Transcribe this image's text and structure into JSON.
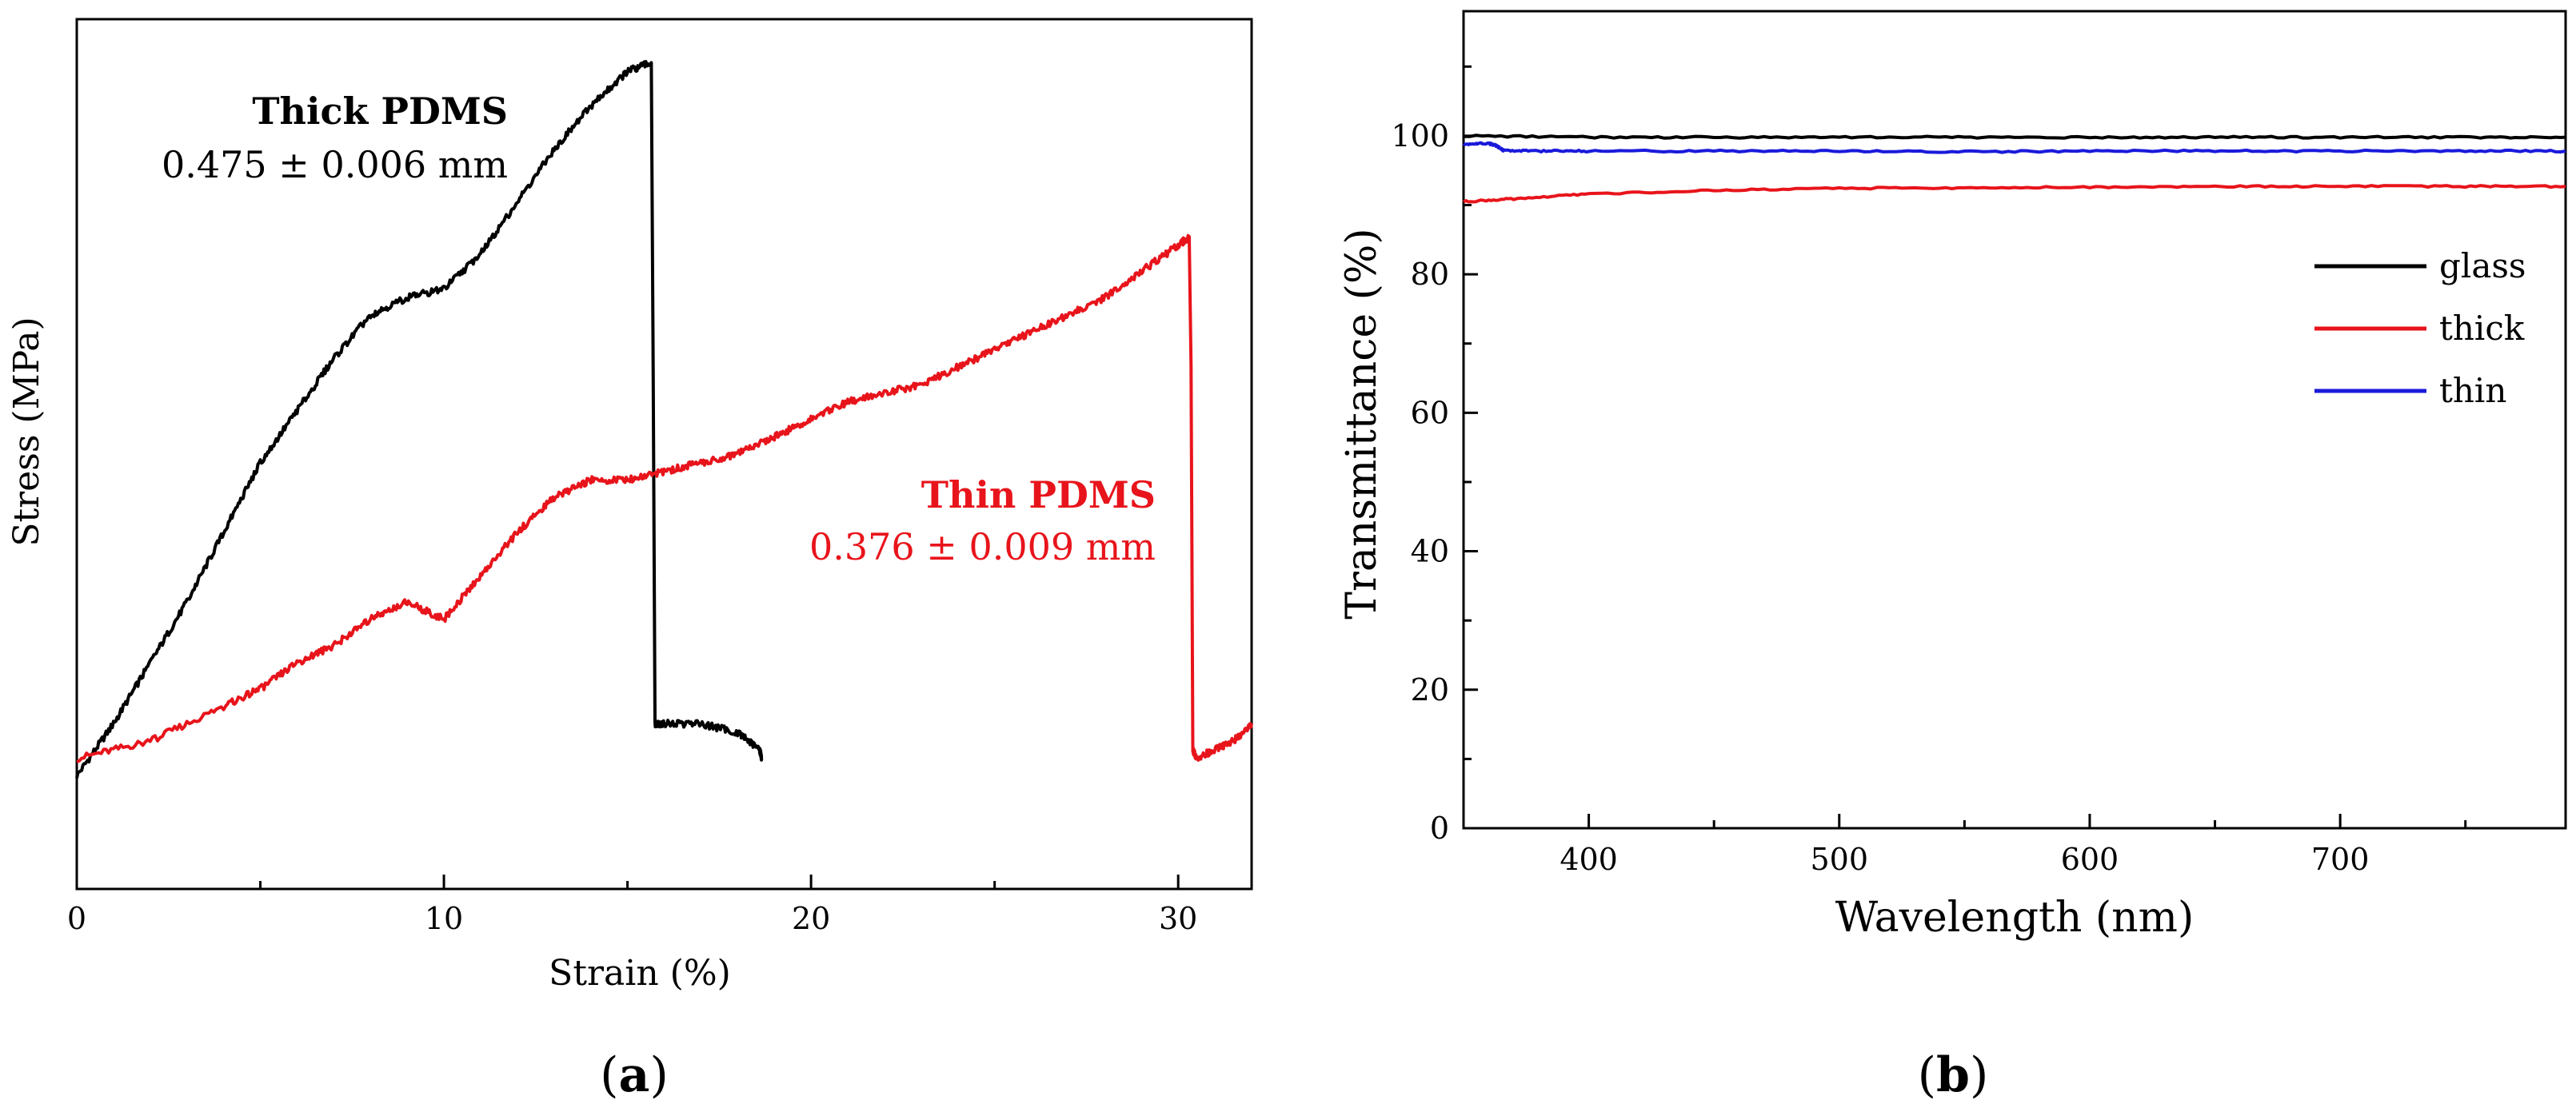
{
  "chart_data": [
    {
      "panel_label": "a",
      "type": "line",
      "xlabel": "Strain (%)",
      "ylabel": "Stress (MPa)",
      "xlim": [
        0,
        32
      ],
      "ylim": [
        0,
        1.0
      ],
      "xticks": [
        0,
        10,
        20,
        30
      ],
      "yticks_labeled": false,
      "grid": false,
      "legend": "none",
      "annotations": [
        {
          "line1": "Thick PDMS",
          "line2": "0.475 ± 0.006 mm",
          "color": "#000000"
        },
        {
          "line1": "Thin PDMS",
          "line2": "0.376 ± 0.009 mm",
          "color": "#e8141b"
        }
      ],
      "series": [
        {
          "color": "#000000",
          "x": [
            0,
            1,
            2,
            3,
            4,
            5,
            6,
            7,
            8,
            9,
            10,
            11,
            12,
            13,
            14,
            15,
            15.65,
            15.7,
            15.75,
            16,
            17,
            18,
            18.6,
            18.65
          ],
          "y": [
            0.13,
            0.19,
            0.26,
            0.33,
            0.41,
            0.49,
            0.55,
            0.61,
            0.66,
            0.68,
            0.69,
            0.73,
            0.79,
            0.85,
            0.9,
            0.94,
            0.95,
            0.6,
            0.19,
            0.19,
            0.19,
            0.18,
            0.16,
            0.15
          ]
        },
        {
          "color": "#e8141b",
          "x": [
            0,
            2,
            4,
            5,
            6,
            7,
            8,
            9,
            10,
            11,
            12,
            13,
            14,
            15,
            16,
            17,
            18,
            19,
            20,
            21,
            22,
            23,
            24,
            25,
            26,
            27,
            28,
            29,
            30,
            30.3,
            30.35,
            30.4,
            30.5,
            31,
            31.5,
            32
          ],
          "y": [
            0.15,
            0.17,
            0.21,
            0.23,
            0.26,
            0.28,
            0.31,
            0.33,
            0.31,
            0.36,
            0.41,
            0.45,
            0.47,
            0.47,
            0.48,
            0.49,
            0.5,
            0.52,
            0.54,
            0.56,
            0.57,
            0.58,
            0.6,
            0.62,
            0.64,
            0.66,
            0.68,
            0.71,
            0.74,
            0.75,
            0.6,
            0.16,
            0.15,
            0.16,
            0.17,
            0.19
          ]
        }
      ]
    },
    {
      "panel_label": "b",
      "type": "line",
      "xlabel": "Wavelength (nm)",
      "ylabel": "Transmittance (%)",
      "xlim": [
        350,
        790
      ],
      "ylim": [
        0,
        118
      ],
      "xticks": [
        400,
        500,
        600,
        700
      ],
      "yticks": [
        0,
        20,
        40,
        60,
        80,
        100
      ],
      "grid": false,
      "legend": "right",
      "series": [
        {
          "name": "glass",
          "color": "#000000",
          "x": [
            350,
            400,
            450,
            500,
            550,
            600,
            650,
            700,
            750,
            790
          ],
          "y": [
            100,
            99.8,
            99.8,
            99.8,
            99.8,
            99.8,
            99.8,
            99.8,
            99.8,
            99.8
          ]
        },
        {
          "name": "thick",
          "color": "#e8141b",
          "x": [
            350,
            370,
            400,
            450,
            500,
            550,
            600,
            650,
            700,
            750,
            790
          ],
          "y": [
            90.5,
            90.9,
            91.6,
            92.1,
            92.4,
            92.5,
            92.6,
            92.7,
            92.7,
            92.7,
            92.7
          ]
        },
        {
          "name": "thin",
          "color": "#1a1adb",
          "x": [
            350,
            360,
            363,
            366,
            380,
            400,
            450,
            500,
            550,
            600,
            650,
            700,
            750,
            790
          ],
          "y": [
            98.8,
            98.9,
            98.6,
            97.9,
            97.8,
            97.8,
            97.8,
            97.8,
            97.7,
            97.8,
            97.8,
            97.8,
            97.8,
            97.8
          ]
        }
      ]
    }
  ]
}
